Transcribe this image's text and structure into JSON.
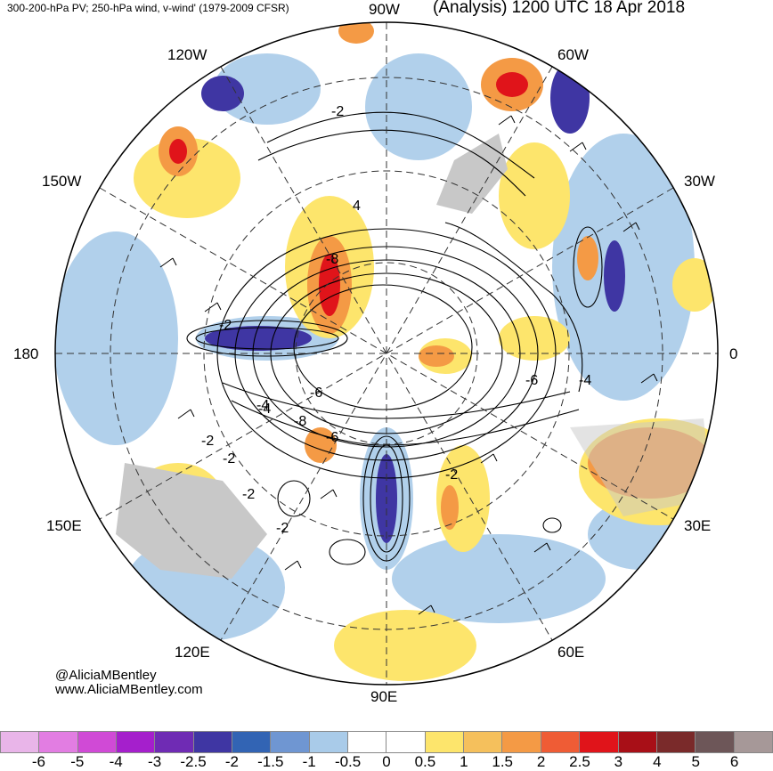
{
  "header": {
    "title_left": "300-200-hPa PV; 250-hPa wind, v-wind' (1979-2009 CFSR)",
    "title_right": "(Analysis) 1200 UTC 18 Apr 2018"
  },
  "map": {
    "projection": "north-polar-stereographic",
    "longitude_labels": {
      "top": "90W",
      "top_left": "120W",
      "top_right": "60W",
      "upper_left": "150W",
      "upper_right": "30W",
      "left": "180",
      "right": "0",
      "lower_left": "150E",
      "lower_right": "30E",
      "bottom_left": "120E",
      "bottom_right": "60E",
      "bottom": "90E"
    },
    "contour_labels": [
      "-2",
      "4",
      "-8",
      "-2",
      "-4",
      "-6",
      "-4",
      "-2",
      "-8",
      "-6",
      "-2",
      "-2",
      "-2",
      "-6",
      "-2",
      "-4"
    ],
    "colors": {
      "land": "#c8c8c8",
      "contour": "#000000",
      "grid": "#333333"
    }
  },
  "credits": {
    "handle": "@AliciaMBentley",
    "website": "www.AliciaMBentley.com"
  },
  "colorbar": {
    "labels": [
      "-6",
      "-5",
      "-4",
      "-3",
      "-2.5",
      "-2",
      "-1.5",
      "-1",
      "-0.5",
      "0",
      "0.5",
      "1",
      "1.5",
      "2",
      "2.5",
      "3",
      "4",
      "5",
      "6"
    ],
    "colors": [
      "#e9b5e9",
      "#e27de2",
      "#d04ad6",
      "#a51fcc",
      "#6f2bb4",
      "#3f36a3",
      "#3264b4",
      "#6f96d2",
      "#a9cbe9",
      "#ffffff",
      "#ffffff",
      "#fde56c",
      "#f5c05c",
      "#f49a45",
      "#ef5c35",
      "#e0141a",
      "#a80f17",
      "#7a2a2a",
      "#6d5658",
      "#a69898"
    ]
  }
}
